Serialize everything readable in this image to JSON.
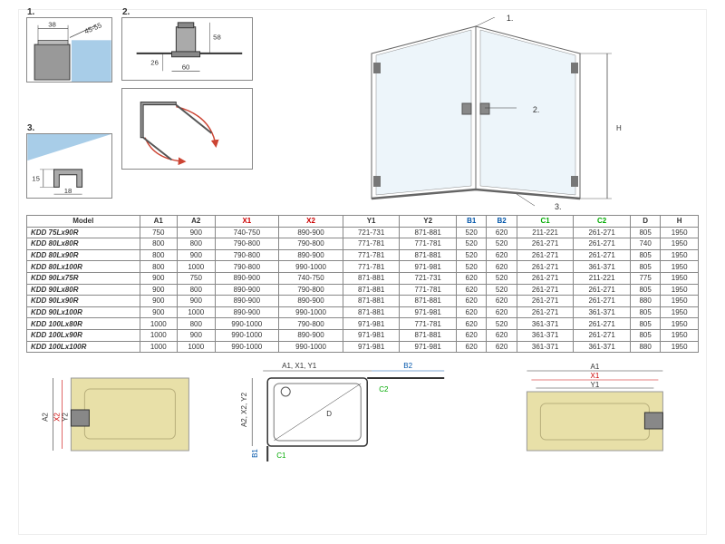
{
  "details": {
    "d1": {
      "label": "1.",
      "dim_top": "38",
      "dim_diag": "45-55"
    },
    "d2": {
      "label": "2.",
      "dim_v1": "58",
      "dim_v2": "26",
      "dim_h": "60"
    },
    "d3": {
      "label": "3.",
      "dim_v": "15",
      "dim_h": "18"
    }
  },
  "iso": {
    "ref1": "1.",
    "ref2": "2.",
    "ref3": "3.",
    "height_label": "H"
  },
  "table": {
    "headers": [
      "Model",
      "A1",
      "A2",
      "X1",
      "X2",
      "Y1",
      "Y2",
      "B1",
      "B2",
      "C1",
      "C2",
      "D",
      "H"
    ],
    "header_classes": [
      "",
      "",
      "",
      "x",
      "x",
      "",
      "",
      "b",
      "b",
      "c",
      "c",
      "",
      ""
    ],
    "rows": [
      [
        "KDD 75Lx90R",
        "750",
        "900",
        "740-750",
        "890-900",
        "721-731",
        "871-881",
        "520",
        "620",
        "211-221",
        "261-271",
        "805",
        "1950"
      ],
      [
        "KDD 80Lx80R",
        "800",
        "800",
        "790-800",
        "790-800",
        "771-781",
        "771-781",
        "520",
        "520",
        "261-271",
        "261-271",
        "740",
        "1950"
      ],
      [
        "KDD 80Lx90R",
        "800",
        "900",
        "790-800",
        "890-900",
        "771-781",
        "871-881",
        "520",
        "620",
        "261-271",
        "261-271",
        "805",
        "1950"
      ],
      [
        "KDD 80Lx100R",
        "800",
        "1000",
        "790-800",
        "990-1000",
        "771-781",
        "971-981",
        "520",
        "620",
        "261-271",
        "361-371",
        "805",
        "1950"
      ],
      [
        "KDD 90Lx75R",
        "900",
        "750",
        "890-900",
        "740-750",
        "871-881",
        "721-731",
        "620",
        "520",
        "261-271",
        "211-221",
        "775",
        "1950"
      ],
      [
        "KDD 90Lx80R",
        "900",
        "800",
        "890-900",
        "790-800",
        "871-881",
        "771-781",
        "620",
        "520",
        "261-271",
        "261-271",
        "805",
        "1950"
      ],
      [
        "KDD 90Lx90R",
        "900",
        "900",
        "890-900",
        "890-900",
        "871-881",
        "871-881",
        "620",
        "620",
        "261-271",
        "261-271",
        "880",
        "1950"
      ],
      [
        "KDD 90Lx100R",
        "900",
        "1000",
        "890-900",
        "990-1000",
        "871-881",
        "971-981",
        "620",
        "620",
        "261-271",
        "361-371",
        "805",
        "1950"
      ],
      [
        "KDD 100Lx80R",
        "1000",
        "800",
        "990-1000",
        "790-800",
        "971-981",
        "771-781",
        "620",
        "520",
        "361-371",
        "261-271",
        "805",
        "1950"
      ],
      [
        "KDD 100Lx90R",
        "1000",
        "900",
        "990-1000",
        "890-900",
        "971-981",
        "871-881",
        "620",
        "620",
        "361-371",
        "261-271",
        "805",
        "1950"
      ],
      [
        "KDD 100Lx100R",
        "1000",
        "1000",
        "990-1000",
        "990-1000",
        "971-981",
        "971-981",
        "620",
        "620",
        "361-371",
        "361-371",
        "880",
        "1950"
      ]
    ]
  },
  "bottom": {
    "labels": {
      "A1": "A1",
      "A2": "A2",
      "X1": "X1",
      "X2": "X2",
      "Y1": "Y1",
      "Y2": "Y2",
      "B1": "B1",
      "B2": "B2",
      "C1": "C1",
      "C2": "C2",
      "D": "D",
      "combo_top": "A1, X1, Y1",
      "combo_left": "A2, X2, Y2"
    }
  },
  "colors": {
    "glass": "#a8cde8",
    "glass_light": "#d7e9f5",
    "rail": "#878787",
    "rail_dark": "#555",
    "beige": "#e8e0a8",
    "beige2": "#d8cf8e",
    "arrow_red": "#c43"
  }
}
